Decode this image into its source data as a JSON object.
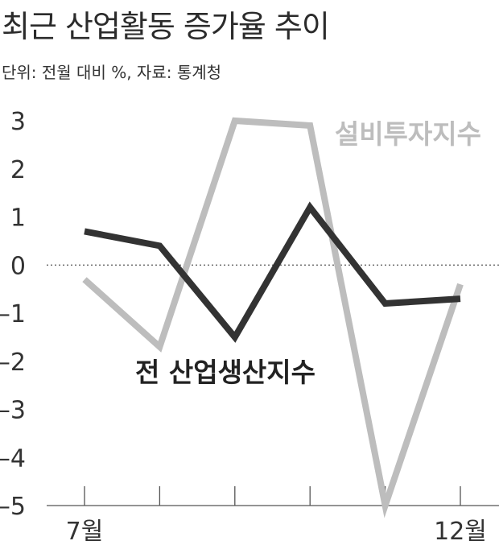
{
  "chart_data": {
    "type": "line",
    "title": "최근 산업활동 증가율 추이",
    "subtitle": "단위: 전월 대비 %, 자료: 통계청",
    "x": [
      "7월",
      "",
      "",
      "",
      "",
      "12월"
    ],
    "ylim": [
      -5,
      3
    ],
    "yticks": [
      3,
      2,
      1,
      0,
      -1,
      -2,
      -3,
      -4,
      -5
    ],
    "reference_line": 0,
    "series": [
      {
        "name": "전 산업생산지수",
        "values": [
          0.7,
          0.4,
          -1.5,
          1.2,
          -0.8,
          -0.7
        ],
        "color": "#333333"
      },
      {
        "name": "설비투자지수",
        "values": [
          -0.3,
          -1.7,
          3.0,
          2.9,
          -5.0,
          -0.4
        ],
        "color": "#bdbdbd"
      }
    ]
  }
}
